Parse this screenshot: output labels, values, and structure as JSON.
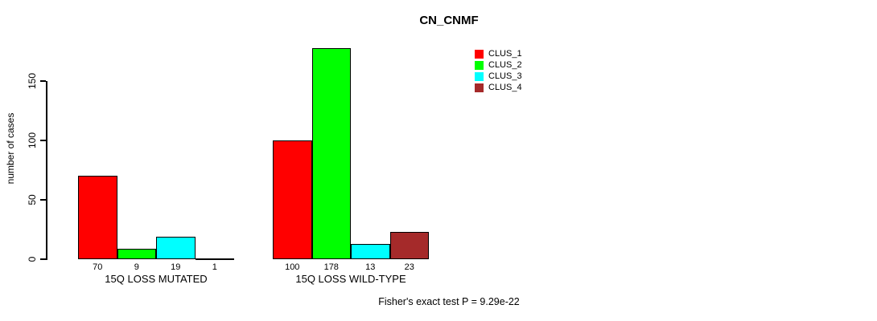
{
  "chart_data": {
    "type": "bar",
    "title": "CN_CNMF",
    "ylabel": "number of cases",
    "xlabel": "",
    "ylim": [
      0,
      185
    ],
    "yticks": [
      0,
      50,
      100,
      150
    ],
    "grid": false,
    "legend_position": "top-right",
    "categories": [
      "15Q LOSS MUTATED",
      "15Q LOSS WILD-TYPE"
    ],
    "series": [
      {
        "name": "CLUS_1",
        "color": "#ff0000",
        "values": [
          70,
          100
        ]
      },
      {
        "name": "CLUS_2",
        "color": "#00ff00",
        "values": [
          9,
          178
        ]
      },
      {
        "name": "CLUS_3",
        "color": "#00ffff",
        "values": [
          19,
          13
        ]
      },
      {
        "name": "CLUS_4",
        "color": "#a52a2a",
        "values": [
          1,
          23
        ]
      }
    ],
    "bar_value_labels": {
      "15Q LOSS MUTATED": [
        70,
        9,
        19,
        1
      ],
      "15Q LOSS WILD-TYPE": [
        100,
        178,
        13,
        23
      ]
    },
    "annotation": "Fisher's exact test P = 9.29e-22"
  }
}
